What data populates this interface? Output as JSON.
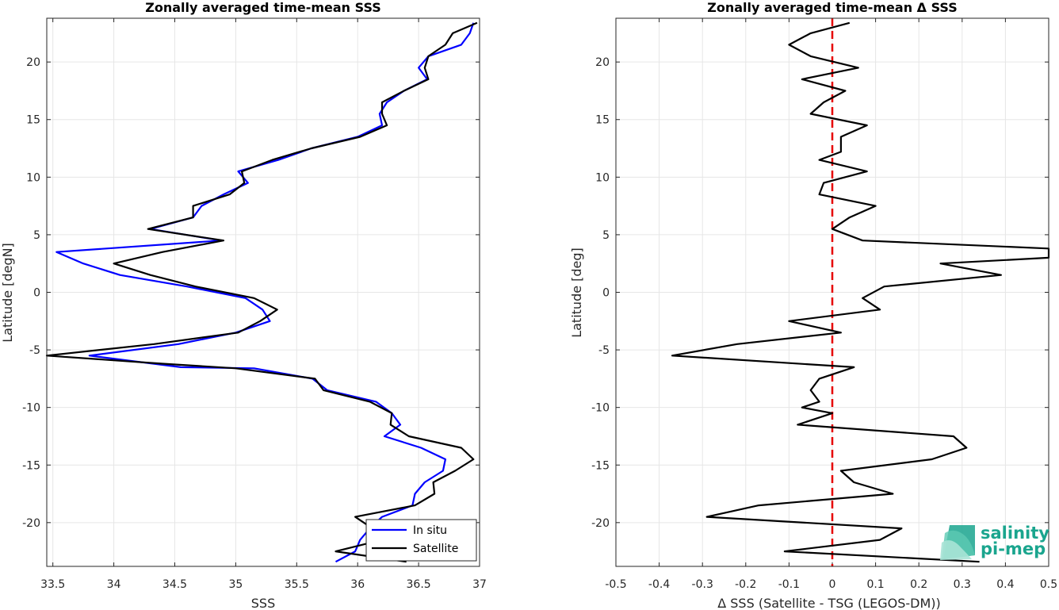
{
  "chart_data": [
    {
      "type": "line",
      "title": "Zonally averaged time-mean SSS",
      "xlabel": "SSS",
      "ylabel": "Latitude [degN]",
      "xlim": [
        33.45,
        37.0
      ],
      "ylim": [
        -23.8,
        23.8
      ],
      "xticks": [
        33.5,
        34,
        34.5,
        35,
        35.5,
        36,
        36.5,
        37
      ],
      "xtick_labels": [
        "33.5",
        "34",
        "34.5",
        "35",
        "35.5",
        "36",
        "36.5",
        "37"
      ],
      "yticks": [
        -20,
        -15,
        -10,
        -5,
        0,
        5,
        10,
        15,
        20
      ],
      "ytick_labels": [
        "-20",
        "-15",
        "-10",
        "-5",
        "0",
        "5",
        "10",
        "15",
        "20"
      ],
      "grid": true,
      "legend": "bottom-right",
      "series": [
        {
          "name": "In situ",
          "color": "#0000ff",
          "points": [
            [
              36.95,
              23.4
            ],
            [
              36.92,
              22.5
            ],
            [
              36.85,
              21.5
            ],
            [
              36.58,
              20.5
            ],
            [
              36.5,
              19.5
            ],
            [
              36.57,
              18.5
            ],
            [
              36.38,
              17.5
            ],
            [
              36.24,
              16.5
            ],
            [
              36.18,
              15.5
            ],
            [
              36.2,
              14.5
            ],
            [
              36.0,
              13.5
            ],
            [
              35.62,
              12.5
            ],
            [
              35.35,
              11.5
            ],
            [
              35.02,
              10.5
            ],
            [
              35.1,
              9.5
            ],
            [
              34.9,
              8.5
            ],
            [
              34.72,
              7.5
            ],
            [
              34.65,
              6.5
            ],
            [
              34.3,
              5.5
            ],
            [
              34.88,
              4.5
            ],
            [
              33.53,
              3.5
            ],
            [
              33.75,
              2.5
            ],
            [
              34.05,
              1.5
            ],
            [
              34.6,
              0.5
            ],
            [
              35.08,
              -0.5
            ],
            [
              35.22,
              -1.5
            ],
            [
              35.28,
              -2.5
            ],
            [
              35.0,
              -3.5
            ],
            [
              34.53,
              -4.5
            ],
            [
              33.8,
              -5.5
            ],
            [
              34.55,
              -6.5
            ],
            [
              35.15,
              -6.6
            ],
            [
              35.63,
              -7.5
            ],
            [
              35.75,
              -8.5
            ],
            [
              36.15,
              -9.5
            ],
            [
              36.28,
              -10.5
            ],
            [
              36.35,
              -11.5
            ],
            [
              36.22,
              -12.5
            ],
            [
              36.52,
              -13.5
            ],
            [
              36.72,
              -14.5
            ],
            [
              36.7,
              -15.5
            ],
            [
              36.55,
              -16.5
            ],
            [
              36.47,
              -17.5
            ],
            [
              36.45,
              -18.5
            ],
            [
              36.2,
              -19.5
            ],
            [
              36.1,
              -20.5
            ],
            [
              36.02,
              -21.5
            ],
            [
              35.98,
              -22.5
            ],
            [
              35.82,
              -23.4
            ]
          ]
        },
        {
          "name": "Satellite",
          "color": "#000000",
          "points": [
            [
              36.98,
              23.4
            ],
            [
              36.78,
              22.5
            ],
            [
              36.72,
              21.5
            ],
            [
              36.58,
              20.5
            ],
            [
              36.55,
              19.5
            ],
            [
              36.58,
              18.5
            ],
            [
              36.38,
              17.5
            ],
            [
              36.2,
              16.5
            ],
            [
              36.2,
              15.5
            ],
            [
              36.24,
              14.5
            ],
            [
              36.02,
              13.5
            ],
            [
              35.62,
              12.5
            ],
            [
              35.3,
              11.5
            ],
            [
              35.05,
              10.5
            ],
            [
              35.07,
              9.5
            ],
            [
              34.95,
              8.5
            ],
            [
              34.65,
              7.5
            ],
            [
              34.65,
              6.5
            ],
            [
              34.28,
              5.5
            ],
            [
              34.9,
              4.5
            ],
            [
              34.4,
              3.5
            ],
            [
              34.0,
              2.5
            ],
            [
              34.3,
              1.5
            ],
            [
              34.67,
              0.5
            ],
            [
              35.15,
              -0.5
            ],
            [
              35.34,
              -1.5
            ],
            [
              35.2,
              -2.5
            ],
            [
              35.02,
              -3.5
            ],
            [
              34.33,
              -4.5
            ],
            [
              33.45,
              -5.5
            ],
            [
              34.4,
              -6.2
            ],
            [
              35.0,
              -6.6
            ],
            [
              35.65,
              -7.5
            ],
            [
              35.72,
              -8.5
            ],
            [
              36.1,
              -9.5
            ],
            [
              36.28,
              -10.5
            ],
            [
              36.27,
              -11.5
            ],
            [
              36.42,
              -12.5
            ],
            [
              36.85,
              -13.5
            ],
            [
              36.95,
              -14.5
            ],
            [
              36.8,
              -15.5
            ],
            [
              36.62,
              -16.5
            ],
            [
              36.63,
              -17.5
            ],
            [
              36.47,
              -18.5
            ],
            [
              35.98,
              -19.5
            ],
            [
              36.12,
              -20.5
            ],
            [
              36.2,
              -21.5
            ],
            [
              35.82,
              -22.5
            ],
            [
              36.4,
              -23.4
            ]
          ]
        }
      ]
    },
    {
      "type": "line",
      "title": "Zonally averaged time-mean Δ SSS",
      "xlabel": "Δ SSS (Satellite - TSG (LEGOS-DM))",
      "ylabel": "Latitude [deg]",
      "xlim": [
        -0.5,
        0.5
      ],
      "ylim": [
        -23.8,
        23.8
      ],
      "xticks": [
        -0.5,
        -0.4,
        -0.3,
        -0.2,
        -0.1,
        0,
        0.1,
        0.2,
        0.3,
        0.4,
        0.5
      ],
      "xtick_labels": [
        "-0.5",
        "-0.4",
        "-0.3",
        "-0.2",
        "-0.1",
        "0",
        "0.1",
        "0.2",
        "0.3",
        "0.4",
        "0.5"
      ],
      "yticks": [
        -20,
        -15,
        -10,
        -5,
        0,
        5,
        10,
        15,
        20
      ],
      "ytick_labels": [
        "-20",
        "-15",
        "-10",
        "-5",
        "0",
        "5",
        "10",
        "15",
        "20"
      ],
      "grid": true,
      "reference_line": {
        "x": 0,
        "color": "#e60000",
        "style": "dashed"
      },
      "series": [
        {
          "color": "#000000",
          "points": [
            [
              0.04,
              23.4
            ],
            [
              -0.05,
              22.5
            ],
            [
              -0.1,
              21.5
            ],
            [
              -0.05,
              20.5
            ],
            [
              0.06,
              19.5
            ],
            [
              -0.07,
              18.5
            ],
            [
              0.03,
              17.5
            ],
            [
              -0.02,
              16.5
            ],
            [
              -0.05,
              15.5
            ],
            [
              0.08,
              14.5
            ],
            [
              0.02,
              13.5
            ],
            [
              0.02,
              12.5
            ],
            [
              0.02,
              12.2
            ],
            [
              -0.03,
              11.5
            ],
            [
              0.08,
              10.5
            ],
            [
              -0.02,
              9.5
            ],
            [
              -0.03,
              8.5
            ],
            [
              0.1,
              7.5
            ],
            [
              0.04,
              6.5
            ],
            [
              0.0,
              5.5
            ],
            [
              0.07,
              4.5
            ],
            [
              0.5,
              3.8
            ],
            [
              0.5,
              3.0
            ],
            [
              0.25,
              2.5
            ],
            [
              0.39,
              1.5
            ],
            [
              0.12,
              0.5
            ],
            [
              0.07,
              -0.5
            ],
            [
              0.11,
              -1.5
            ],
            [
              -0.1,
              -2.5
            ],
            [
              0.02,
              -3.5
            ],
            [
              -0.22,
              -4.5
            ],
            [
              -0.37,
              -5.5
            ],
            [
              0.05,
              -6.5
            ],
            [
              -0.03,
              -7.5
            ],
            [
              -0.05,
              -8.5
            ],
            [
              -0.03,
              -9.5
            ],
            [
              -0.07,
              -10.0
            ],
            [
              0.0,
              -10.5
            ],
            [
              -0.08,
              -11.5
            ],
            [
              0.28,
              -12.5
            ],
            [
              0.31,
              -13.5
            ],
            [
              0.23,
              -14.5
            ],
            [
              0.02,
              -15.5
            ],
            [
              0.05,
              -16.5
            ],
            [
              0.14,
              -17.5
            ],
            [
              -0.17,
              -18.5
            ],
            [
              -0.29,
              -19.5
            ],
            [
              0.16,
              -20.5
            ],
            [
              0.11,
              -21.5
            ],
            [
              -0.11,
              -22.5
            ],
            [
              0.34,
              -23.4
            ]
          ]
        }
      ]
    }
  ],
  "logo": {
    "line1": "salinity",
    "line2": "pi-mep"
  }
}
